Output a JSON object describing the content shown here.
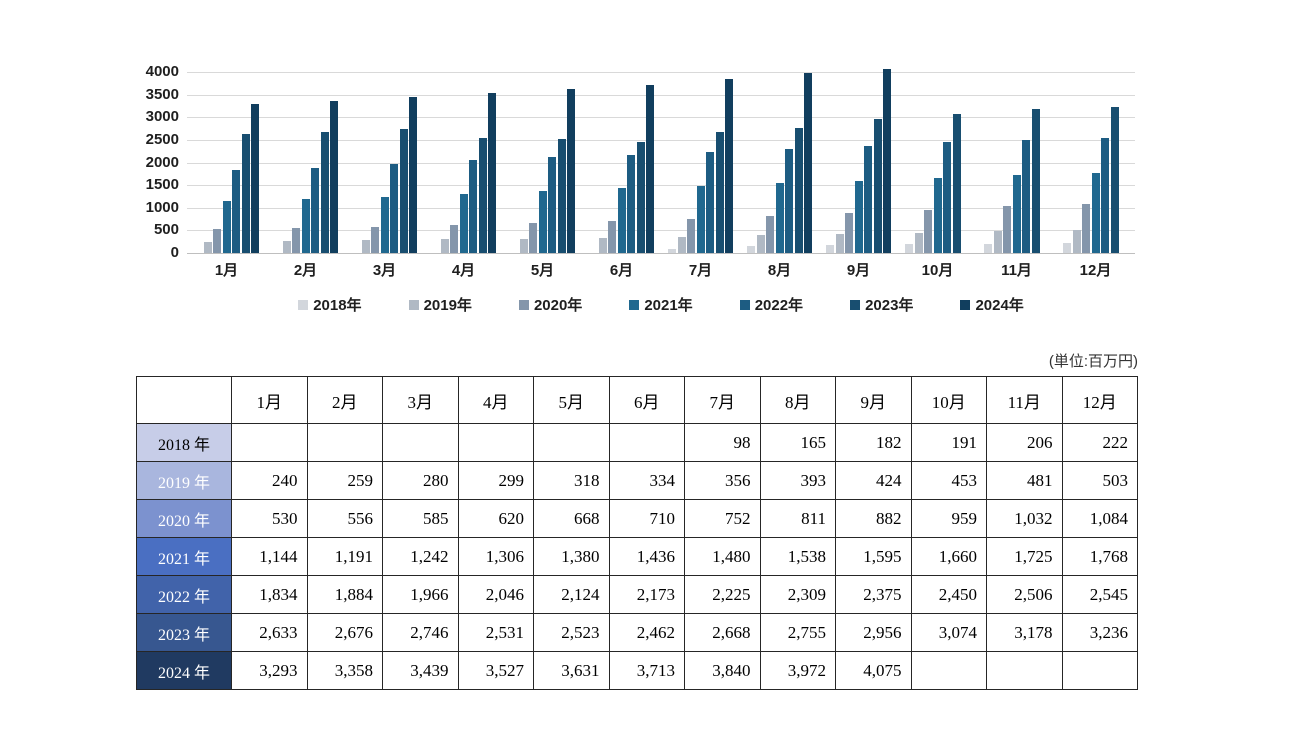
{
  "chart_data": {
    "type": "bar",
    "title": "",
    "xlabel": "",
    "ylabel": "",
    "categories": [
      "1月",
      "2月",
      "3月",
      "4月",
      "5月",
      "6月",
      "7月",
      "8月",
      "9月",
      "10月",
      "11月",
      "12月"
    ],
    "series": [
      {
        "name": "2018年",
        "color": "#d2d6dc",
        "values": [
          null,
          null,
          null,
          null,
          null,
          null,
          98,
          165,
          182,
          191,
          206,
          222
        ]
      },
      {
        "name": "2019年",
        "color": "#b0b9c4",
        "values": [
          240,
          259,
          280,
          299,
          318,
          334,
          356,
          393,
          424,
          453,
          481,
          503
        ]
      },
      {
        "name": "2020年",
        "color": "#8496ab",
        "values": [
          530,
          556,
          585,
          620,
          668,
          710,
          752,
          811,
          882,
          959,
          1032,
          1084
        ]
      },
      {
        "name": "2021年",
        "color": "#20688f",
        "values": [
          1144,
          1191,
          1242,
          1306,
          1380,
          1436,
          1480,
          1538,
          1595,
          1660,
          1725,
          1768
        ]
      },
      {
        "name": "2022年",
        "color": "#1d5c82",
        "values": [
          1834,
          1884,
          1966,
          2046,
          2124,
          2173,
          2225,
          2309,
          2375,
          2450,
          2506,
          2545
        ]
      },
      {
        "name": "2023年",
        "color": "#184e70",
        "values": [
          2633,
          2676,
          2746,
          2531,
          2523,
          2462,
          2668,
          2755,
          2956,
          3074,
          3178,
          3236
        ]
      },
      {
        "name": "2024年",
        "color": "#113e5e",
        "values": [
          3293,
          3358,
          3439,
          3527,
          3631,
          3713,
          3840,
          3972,
          4075,
          null,
          null,
          null
        ]
      }
    ],
    "ylim": [
      0,
      4000
    ],
    "y_tick_step": 500,
    "y_ticks": [
      "4000",
      "3500",
      "3000",
      "2500",
      "2000",
      "1500",
      "1000",
      "500",
      "0"
    ],
    "grid": true,
    "legend_position": "bottom"
  },
  "table": {
    "unit_label": "(単位:百万円)",
    "corner_label": "",
    "columns": [
      "1月",
      "2月",
      "3月",
      "4月",
      "5月",
      "6月",
      "7月",
      "8月",
      "9月",
      "10月",
      "11月",
      "12月"
    ],
    "rows": [
      {
        "label": "2018 年",
        "bg": "#c7cde8",
        "text_color": "#000000"
      },
      {
        "label": "2019 年",
        "bg": "#a9b6de",
        "text_color": "#ffffff"
      },
      {
        "label": "2020 年",
        "bg": "#7c92cf",
        "text_color": "#ffffff"
      },
      {
        "label": "2021 年",
        "bg": "#4a6fc2",
        "text_color": "#ffffff"
      },
      {
        "label": "2022 年",
        "bg": "#4163aa",
        "text_color": "#ffffff"
      },
      {
        "label": "2023 年",
        "bg": "#375790",
        "text_color": "#ffffff"
      },
      {
        "label": "2024 年",
        "bg": "#203a61",
        "text_color": "#ffffff"
      }
    ]
  }
}
